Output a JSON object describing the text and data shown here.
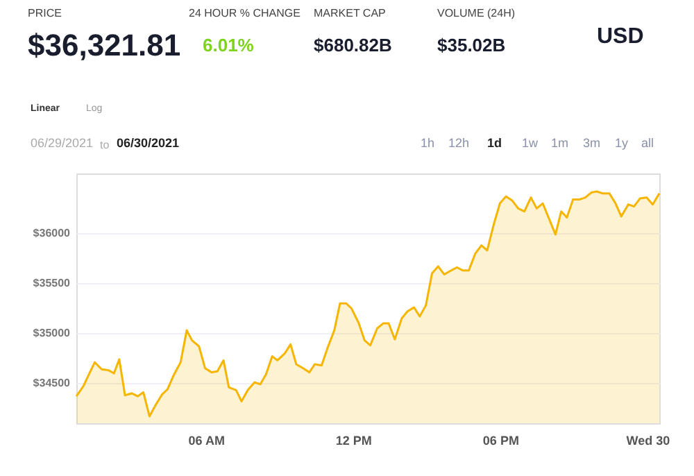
{
  "chart_data": {
    "type": "area",
    "color": "#f5b500",
    "x": [
      "2021-06-29T00:43",
      "2021-06-29T01:00",
      "2021-06-29T01:15",
      "2021-06-29T01:28",
      "2021-06-29T01:45",
      "2021-06-29T02:02",
      "2021-06-29T02:15",
      "2021-06-29T02:28",
      "2021-06-29T02:42",
      "2021-06-29T02:59",
      "2021-06-29T03:13",
      "2021-06-29T03:27",
      "2021-06-29T03:42",
      "2021-06-29T03:58",
      "2021-06-29T04:13",
      "2021-06-29T04:26",
      "2021-06-29T04:41",
      "2021-06-29T04:58",
      "2021-06-29T05:13",
      "2021-06-29T05:26",
      "2021-06-29T05:43",
      "2021-06-29T05:58",
      "2021-06-29T06:14",
      "2021-06-29T06:28",
      "2021-06-29T06:43",
      "2021-06-29T06:56",
      "2021-06-29T07:14",
      "2021-06-29T07:27",
      "2021-06-29T07:42",
      "2021-06-29T07:59",
      "2021-06-29T08:13",
      "2021-06-29T08:27",
      "2021-06-29T08:42",
      "2021-06-29T08:55",
      "2021-06-29T09:13",
      "2021-06-29T09:27",
      "2021-06-29T09:41",
      "2021-06-29T09:58",
      "2021-06-29T10:13",
      "2021-06-29T10:26",
      "2021-06-29T10:43",
      "2021-06-29T10:58",
      "2021-06-29T11:14",
      "2021-06-29T11:28",
      "2021-06-29T11:43",
      "2021-06-29T11:56",
      "2021-06-29T12:14",
      "2021-06-29T12:28",
      "2021-06-29T12:42",
      "2021-06-29T12:59",
      "2021-06-29T13:14",
      "2021-06-29T13:27",
      "2021-06-29T13:42",
      "2021-06-29T13:59",
      "2021-06-29T14:13",
      "2021-06-29T14:29",
      "2021-06-29T14:43",
      "2021-06-29T14:58",
      "2021-06-29T15:13",
      "2021-06-29T15:28",
      "2021-06-29T15:43",
      "2021-06-29T16:00",
      "2021-06-29T16:14",
      "2021-06-29T16:28",
      "2021-06-29T16:43",
      "2021-06-29T16:59",
      "2021-06-29T17:14",
      "2021-06-29T17:28",
      "2021-06-29T17:44",
      "2021-06-29T17:59",
      "2021-06-29T18:14",
      "2021-06-29T18:29",
      "2021-06-29T18:44",
      "2021-06-29T18:59",
      "2021-06-29T19:15",
      "2021-06-29T19:29",
      "2021-06-29T19:44",
      "2021-06-29T20:00",
      "2021-06-29T20:15",
      "2021-06-29T20:29",
      "2021-06-29T20:43",
      "2021-06-29T20:58",
      "2021-06-29T21:14",
      "2021-06-29T21:28",
      "2021-06-29T21:43",
      "2021-06-29T21:56",
      "2021-06-29T22:11",
      "2021-06-29T22:27",
      "2021-06-29T22:42",
      "2021-06-29T22:56",
      "2021-06-29T23:13",
      "2021-06-29T23:27",
      "2021-06-29T23:42",
      "2021-06-29T23:58",
      "2021-06-30T00:13",
      "2021-06-30T00:29"
    ],
    "values": [
      34370,
      34470,
      34600,
      34710,
      34640,
      34630,
      34600,
      34740,
      34380,
      34400,
      34370,
      34410,
      34170,
      34290,
      34390,
      34440,
      34580,
      34710,
      35030,
      34930,
      34870,
      34650,
      34610,
      34620,
      34730,
      34460,
      34430,
      34320,
      34430,
      34510,
      34490,
      34590,
      34770,
      34730,
      34800,
      34890,
      34690,
      34650,
      34610,
      34690,
      34680,
      34860,
      35030,
      35300,
      35300,
      35250,
      35100,
      34930,
      34880,
      35050,
      35100,
      35100,
      34940,
      35150,
      35220,
      35260,
      35170,
      35280,
      35600,
      35670,
      35590,
      35630,
      35660,
      35630,
      35630,
      35800,
      35880,
      35830,
      36090,
      36300,
      36370,
      36330,
      36250,
      36220,
      36360,
      36250,
      36300,
      36140,
      35990,
      36220,
      36160,
      36340,
      36340,
      36360,
      36410,
      36420,
      36400,
      36400,
      36300,
      36170,
      36290,
      36270,
      36350,
      36360,
      36290,
      36400
    ],
    "xlim": [
      "2021-06-29T00:43",
      "2021-06-30T00:29"
    ],
    "xticks": [
      {
        "value": "2021-06-29T06:00",
        "label": "06 AM"
      },
      {
        "value": "2021-06-29T12:00",
        "label": "12 PM"
      },
      {
        "value": "2021-06-29T18:00",
        "label": "06 PM"
      },
      {
        "value": "2021-06-30T00:00",
        "label": "Wed 30"
      }
    ],
    "ylim": [
      34100,
      36600
    ],
    "yticks": [
      {
        "value": 34500,
        "label": "$34500"
      },
      {
        "value": 35000,
        "label": "$35000"
      },
      {
        "value": 35500,
        "label": "$35500"
      },
      {
        "value": 36000,
        "label": "$36000"
      }
    ],
    "grid": "y",
    "marker": "none",
    "line_style": "solid",
    "annotations": [
      "PRICE",
      "$36,321.81",
      "24 HOUR % CHANGE",
      "6.01%",
      "MARKET CAP",
      "$680.82B",
      "VOLUME (24H)",
      "$35.02B",
      "USD",
      "Linear",
      "Log",
      "06/29/2021",
      "to",
      "06/30/2021",
      "1h",
      "12h",
      "1d",
      "1w",
      "1m",
      "3m",
      "1y",
      "all"
    ]
  }
}
